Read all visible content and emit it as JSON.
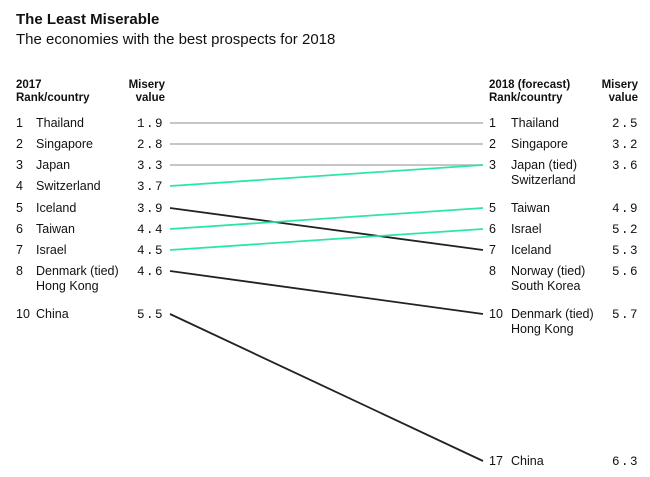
{
  "title": "The Least Miserable",
  "subtitle": "The economies with the best prospects for 2018",
  "headers": {
    "left_rank_line1": "2017",
    "left_rank_line2": "Rank/country",
    "left_value_line1": "Misery",
    "left_value_line2": "value",
    "right_rank_line1": "2018 (forecast)",
    "right_rank_line2": "Rank/country",
    "right_value_line1": "Misery",
    "right_value_line2": "value"
  },
  "colors": {
    "unchanged": "#b3b3b3",
    "improved": "#2ee5a9",
    "worsened": "#222222"
  },
  "chart_data": {
    "type": "slope",
    "title": "The Least Miserable",
    "subtitle": "The economies with the best prospects for 2018",
    "left_rows": [
      {
        "rank": "1",
        "lines": [
          "Thailand"
        ],
        "value": "1.9"
      },
      {
        "rank": "2",
        "lines": [
          "Singapore"
        ],
        "value": "2.8"
      },
      {
        "rank": "3",
        "lines": [
          "Japan"
        ],
        "value": "3.3"
      },
      {
        "rank": "4",
        "lines": [
          "Switzerland"
        ],
        "value": "3.7"
      },
      {
        "rank": "5",
        "lines": [
          "Iceland"
        ],
        "value": "3.9"
      },
      {
        "rank": "6",
        "lines": [
          "Taiwan"
        ],
        "value": "4.4"
      },
      {
        "rank": "7",
        "lines": [
          "Israel"
        ],
        "value": "4.5"
      },
      {
        "rank": "8",
        "lines": [
          "Denmark (tied)",
          "Hong Kong"
        ],
        "value": "4.6"
      },
      {
        "rank": "10",
        "lines": [
          "China"
        ],
        "value": "5.5"
      }
    ],
    "right_rows": [
      {
        "rank": "1",
        "lines": [
          "Thailand"
        ],
        "value": "2.5"
      },
      {
        "rank": "2",
        "lines": [
          "Singapore"
        ],
        "value": "3.2"
      },
      {
        "rank": "3",
        "lines": [
          "Japan (tied)",
          "Switzerland"
        ],
        "value": "3.6"
      },
      {
        "rank": "5",
        "lines": [
          "Taiwan"
        ],
        "value": "4.9"
      },
      {
        "rank": "6",
        "lines": [
          "Israel"
        ],
        "value": "5.2"
      },
      {
        "rank": "7",
        "lines": [
          "Iceland"
        ],
        "value": "5.3"
      },
      {
        "rank": "8",
        "lines": [
          "Norway (tied)",
          "South Korea"
        ],
        "value": "5.6"
      },
      {
        "rank": "10",
        "lines": [
          "Denmark (tied)",
          "Hong Kong"
        ],
        "value": "5.7"
      },
      {
        "rank": "17",
        "lines": [
          "China"
        ],
        "value": "6.3"
      }
    ],
    "links": [
      {
        "name": "Thailand",
        "rank_2017": 1,
        "rank_2018": 1,
        "change": "unchanged"
      },
      {
        "name": "Singapore",
        "rank_2017": 2,
        "rank_2018": 2,
        "change": "unchanged"
      },
      {
        "name": "Japan",
        "rank_2017": 3,
        "rank_2018": 3,
        "change": "unchanged"
      },
      {
        "name": "Switzerland",
        "rank_2017": 4,
        "rank_2018": 3,
        "change": "improved"
      },
      {
        "name": "Iceland",
        "rank_2017": 5,
        "rank_2018": 7,
        "change": "worsened"
      },
      {
        "name": "Taiwan",
        "rank_2017": 6,
        "rank_2018": 5,
        "change": "improved"
      },
      {
        "name": "Israel",
        "rank_2017": 7,
        "rank_2018": 6,
        "change": "improved"
      },
      {
        "name": "Denmark / Hong Kong",
        "rank_2017": 8,
        "rank_2018": 10,
        "change": "worsened"
      },
      {
        "name": "China",
        "rank_2017": 10,
        "rank_2018": 17,
        "change": "worsened"
      }
    ]
  }
}
